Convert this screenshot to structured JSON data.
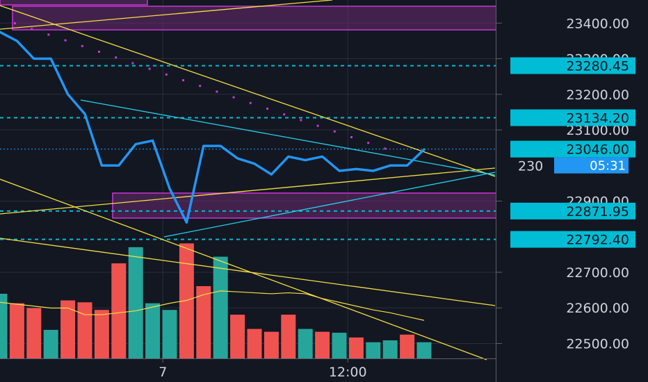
{
  "chart_data": {
    "type": "line",
    "colors": {
      "background": "#131722",
      "grid": "#2a2e39",
      "price_line": "#2196f3",
      "volume_up": "#26a69a",
      "volume_down": "#ef5350",
      "trendline": "#f5e042",
      "channel": "#22d3ee",
      "zone_fill": "#6a2c70",
      "zone_border": "#c837d4",
      "level_line": "#00bcd4",
      "badge_bg": "#00bcd4",
      "timer_bg": "#2196f3",
      "axis_text": "#d1d4dc",
      "separator": "#5d606b"
    },
    "ylim": [
      22458,
      23465
    ],
    "xlim": [
      0,
      29
    ],
    "y_ticks": [
      {
        "value": 23400,
        "label": "23400.00"
      },
      {
        "value": 23300,
        "label": "23300.00"
      },
      {
        "value": 23200,
        "label": "23200.00"
      },
      {
        "value": 23100,
        "label": "23100.00"
      },
      {
        "value": 22900,
        "label": "22900.00"
      },
      {
        "value": 22700,
        "label": "22700.00"
      },
      {
        "value": 22600,
        "label": "22600.00"
      },
      {
        "value": 22500,
        "label": "22500.00"
      }
    ],
    "x_ticks": [
      {
        "x": 9.6,
        "label": "7"
      },
      {
        "x": 20.5,
        "label": "12:00"
      }
    ],
    "price_levels": [
      {
        "value": 23280.45,
        "label": "23280.45"
      },
      {
        "value": 23134.2,
        "label": "23134.20"
      },
      {
        "value": 22871.95,
        "label": "22871.95"
      },
      {
        "value": 22792.4,
        "label": "22792.40"
      }
    ],
    "current_price": {
      "value": 23046.0,
      "label": "23046.00",
      "countdown": "05:31",
      "hidden_label": "230"
    },
    "series": [
      {
        "x": [
          0,
          1,
          2,
          3,
          4,
          5,
          6,
          7,
          8,
          9,
          10,
          11,
          12,
          13,
          14,
          15,
          16,
          17,
          18,
          19,
          20,
          21,
          22,
          23,
          24,
          25
        ],
        "values": [
          23375,
          23350,
          23300,
          23300,
          23200,
          23145,
          23000,
          23000,
          23060,
          23070,
          22935,
          22840,
          23055,
          23055,
          23020,
          23005,
          22975,
          23025,
          23015,
          23025,
          22985,
          22990,
          22985,
          23000,
          23000,
          23045
        ]
      }
    ],
    "volume": {
      "x": [
        0,
        1,
        2,
        3,
        4,
        5,
        6,
        7,
        8,
        9,
        10,
        11,
        12,
        13,
        14,
        15,
        16,
        17,
        18,
        19,
        20,
        21,
        22,
        23,
        24,
        25
      ],
      "values": [
        0.68,
        0.58,
        0.53,
        0.3,
        0.61,
        0.59,
        0.51,
        1.0,
        1.17,
        0.58,
        0.51,
        1.21,
        0.76,
        1.07,
        0.46,
        0.31,
        0.28,
        0.46,
        0.31,
        0.28,
        0.27,
        0.22,
        0.17,
        0.19,
        0.25,
        0.17
      ],
      "direction": [
        "up",
        "down",
        "down",
        "up",
        "down",
        "down",
        "down",
        "down",
        "up",
        "up",
        "up",
        "down",
        "down",
        "up",
        "down",
        "down",
        "down",
        "down",
        "up",
        "down",
        "up",
        "down",
        "up",
        "up",
        "down",
        "up"
      ],
      "ma_values": [
        0.59,
        0.57,
        0.55,
        0.53,
        0.53,
        0.46,
        0.46,
        0.48,
        0.5,
        0.54,
        0.58,
        0.61,
        0.67,
        0.71,
        0.7,
        0.69,
        0.68,
        0.69,
        0.68,
        0.63,
        0.59,
        0.55,
        0.51,
        0.48,
        0.44,
        0.4
      ],
      "ylim": [
        0,
        1.9
      ]
    }
  }
}
